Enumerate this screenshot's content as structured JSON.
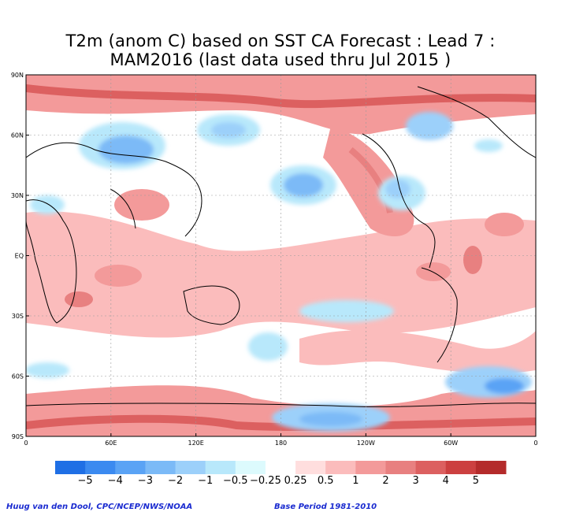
{
  "title": {
    "line1": "T2m (anom C) based on SST CA Forecast : Lead 7 :",
    "line2": "MAM2016 (last data used thru Jul 2015 )"
  },
  "map": {
    "lat_labels": [
      "90N",
      "60N",
      "30N",
      "EQ",
      "30S",
      "60S",
      "90S"
    ],
    "lon_labels": [
      "0",
      "60E",
      "120E",
      "180",
      "120W",
      "60W",
      "0"
    ]
  },
  "colorbar": {
    "colors": [
      "#1f6fe5",
      "#3b8af0",
      "#5aa3f5",
      "#7bbaf7",
      "#9cd0fa",
      "#b8e8fb",
      "#dcfafd",
      "#ffffff",
      "#ffdede",
      "#fbbcbc",
      "#f39a9a",
      "#e88080",
      "#dc6060",
      "#cc4040",
      "#b42b2b"
    ],
    "labels": [
      "−5",
      "−4",
      "−3",
      "−2",
      "−1",
      "−0.5",
      "−0.25",
      "0.25",
      "0.5",
      "1",
      "2",
      "3",
      "4",
      "5"
    ]
  },
  "footer": {
    "credit": "Huug van den Dool, CPC/NCEP/NWS/NOAA",
    "base_period": "Base Period 1981-2010"
  },
  "chart_data": {
    "type": "heatmap",
    "title": "T2m (anom C) based on SST CA Forecast : Lead 7 : MAM2016 (last data used thru Jul 2015 )",
    "x_range": [
      "0",
      "0"
    ],
    "y_range": [
      "90S",
      "90N"
    ],
    "levels": [
      -5,
      -4,
      -3,
      -2,
      -1,
      -0.5,
      -0.25,
      0.25,
      0.5,
      1,
      2,
      3,
      4,
      5
    ],
    "colors": [
      "#1f6fe5",
      "#3b8af0",
      "#5aa3f5",
      "#7bbaf7",
      "#9cd0fa",
      "#b8e8fb",
      "#dcfafd",
      "#ffffff",
      "#ffdede",
      "#fbbcbc",
      "#f39a9a",
      "#e88080",
      "#dc6060",
      "#cc4040",
      "#b42b2b"
    ],
    "grid": true
  }
}
